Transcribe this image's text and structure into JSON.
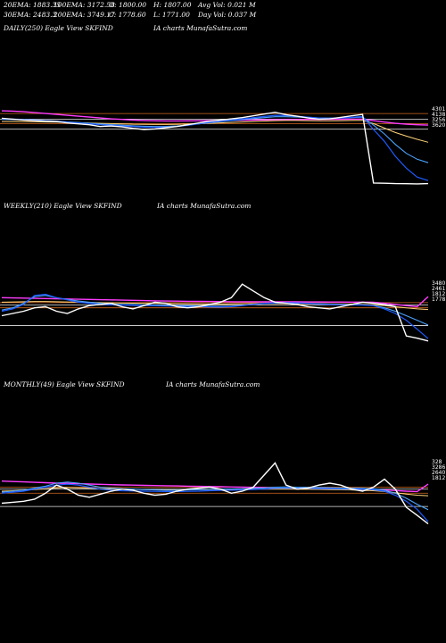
{
  "header": {
    "ema20": "20EMA: 1883.35",
    "ema100": "100EMA: 3172.58",
    "open": "O: 1800.00",
    "high": "H: 1807.00",
    "avgvol": "Avg Vol: 0.021 M",
    "ema30": "30EMA: 2483.3",
    "ema200": "200EMA: 3749.17",
    "close": "C: 1778.60",
    "low": "L: 1771.00",
    "dayvol": "Day Vol: 0.037 M"
  },
  "panels": {
    "daily": {
      "label": "DAILY(250) Eagle   View  SKFIND",
      "watermark": "IA charts MunafaSutra.com"
    },
    "weekly": {
      "label": "WEEKLY(210) Eagle   View  SKFIND",
      "watermark": "IA charts MunafaSutra.com"
    },
    "monthly": {
      "label": "MONTHLY(49) Eagle   View  SKFIND",
      "watermark": "IA charts MunafaSutra.com"
    }
  },
  "colors": {
    "price": "#ffffff",
    "ema20": "#1e5bff",
    "ema30": "#4aa3ff",
    "ema100": "#ffd27a",
    "ema200": "#ff3cff",
    "hline_orange": "#d2691e",
    "hline_white": "#e6e6e6"
  },
  "chart_data": [
    {
      "type": "line",
      "title": "DAILY(250)",
      "price_labels": [
        "4301",
        "4138",
        "3256",
        "3620"
      ],
      "series": [
        {
          "name": "",
          "key": "price",
          "values": [
            3980,
            3950,
            3920,
            3900,
            3880,
            3870,
            3820,
            3790,
            3760,
            3700,
            3720,
            3690,
            3640,
            3600,
            3620,
            3660,
            3700,
            3760,
            3820,
            3880,
            3920,
            3960,
            4000,
            4060,
            4120,
            4180,
            4100,
            4050,
            3990,
            3950,
            3960,
            4010,
            4060,
            4110,
            1800,
            1790,
            1780,
            1775,
            1770,
            1778
          ]
        },
        {
          "name": "",
          "key": "ema20",
          "values": [
            3960,
            3950,
            3940,
            3920,
            3900,
            3880,
            3850,
            3820,
            3790,
            3760,
            3740,
            3720,
            3700,
            3680,
            3670,
            3680,
            3700,
            3740,
            3790,
            3840,
            3880,
            3920,
            3960,
            4000,
            4040,
            4080,
            4070,
            4050,
            4020,
            3990,
            3980,
            3990,
            4010,
            4040,
            3600,
            3200,
            2700,
            2300,
            2000,
            1883
          ]
        },
        {
          "name": "",
          "key": "ema30",
          "values": [
            3940,
            3935,
            3930,
            3915,
            3900,
            3885,
            3860,
            3835,
            3810,
            3785,
            3765,
            3745,
            3725,
            3710,
            3700,
            3705,
            3720,
            3750,
            3790,
            3830,
            3865,
            3900,
            3935,
            3970,
            4000,
            4030,
            4030,
            4020,
            4005,
            3990,
            3985,
            3990,
            4000,
            4020,
            3750,
            3450,
            3100,
            2800,
            2600,
            2483
          ]
        },
        {
          "name": "",
          "key": "ema100",
          "values": [
            3870,
            3870,
            3865,
            3860,
            3855,
            3850,
            3840,
            3830,
            3820,
            3810,
            3800,
            3790,
            3780,
            3775,
            3770,
            3770,
            3775,
            3785,
            3795,
            3810,
            3825,
            3840,
            3855,
            3870,
            3885,
            3900,
            3905,
            3905,
            3900,
            3895,
            3895,
            3900,
            3905,
            3910,
            3800,
            3650,
            3500,
            3380,
            3270,
            3172
          ]
        },
        {
          "name": "",
          "key": "ema200",
          "values": [
            4230,
            4220,
            4200,
            4170,
            4140,
            4110,
            4080,
            4050,
            4020,
            3990,
            3960,
            3940,
            3920,
            3905,
            3895,
            3890,
            3890,
            3892,
            3895,
            3900,
            3905,
            3910,
            3915,
            3920,
            3925,
            3930,
            3935,
            3938,
            3940,
            3942,
            3945,
            3948,
            3950,
            3952,
            3900,
            3850,
            3810,
            3780,
            3760,
            3749
          ]
        }
      ],
      "hlines": [
        4138,
        3950,
        3800,
        3620
      ]
    },
    {
      "type": "line",
      "title": "WEEKLY(210)",
      "price_labels": [
        "3480",
        "2461",
        "1812",
        "1778"
      ],
      "series": [
        {
          "name": "",
          "key": "price",
          "values": [
            2900,
            3000,
            3100,
            3250,
            3300,
            3100,
            3000,
            3200,
            3350,
            3400,
            3450,
            3300,
            3200,
            3350,
            3500,
            3450,
            3300,
            3250,
            3300,
            3400,
            3500,
            3700,
            4300,
            4000,
            3700,
            3500,
            3450,
            3400,
            3300,
            3250,
            3200,
            3300,
            3400,
            3500,
            3450,
            3400,
            3300,
            2000,
            1900,
            1778
          ]
        },
        {
          "name": "",
          "key": "ema20",
          "values": [
            3100,
            3200,
            3400,
            3800,
            3850,
            3700,
            3600,
            3500,
            3450,
            3400,
            3380,
            3370,
            3360,
            3350,
            3340,
            3330,
            3320,
            3310,
            3300,
            3290,
            3280,
            3300,
            3350,
            3400,
            3450,
            3470,
            3480,
            3470,
            3450,
            3420,
            3400,
            3390,
            3380,
            3370,
            3350,
            3200,
            3000,
            2700,
            2300,
            1883
          ]
        },
        {
          "name": "",
          "key": "ema30",
          "values": [
            3150,
            3250,
            3450,
            3750,
            3800,
            3700,
            3620,
            3550,
            3500,
            3450,
            3420,
            3400,
            3390,
            3380,
            3370,
            3360,
            3350,
            3340,
            3330,
            3320,
            3310,
            3320,
            3360,
            3400,
            3440,
            3460,
            3470,
            3465,
            3450,
            3430,
            3410,
            3400,
            3390,
            3380,
            3360,
            3250,
            3100,
            2900,
            2700,
            2483
          ]
        },
        {
          "name": "",
          "key": "ema100",
          "values": [
            3500,
            3510,
            3520,
            3530,
            3530,
            3520,
            3510,
            3500,
            3490,
            3480,
            3470,
            3460,
            3455,
            3450,
            3445,
            3440,
            3435,
            3430,
            3425,
            3420,
            3420,
            3425,
            3430,
            3435,
            3440,
            3440,
            3440,
            3435,
            3430,
            3425,
            3420,
            3415,
            3410,
            3400,
            3390,
            3350,
            3300,
            3250,
            3200,
            3172
          ]
        },
        {
          "name": "",
          "key": "ema200",
          "values": [
            3700,
            3690,
            3680,
            3670,
            3660,
            3650,
            3640,
            3630,
            3620,
            3610,
            3600,
            3590,
            3580,
            3570,
            3560,
            3550,
            3545,
            3540,
            3535,
            3530,
            3525,
            3520,
            3520,
            3520,
            3520,
            3518,
            3516,
            3514,
            3512,
            3510,
            3508,
            3506,
            3504,
            3502,
            3500,
            3450,
            3400,
            3350,
            3300,
            3749
          ]
        }
      ],
      "hlines": [
        3480,
        3380,
        3250,
        2461
      ]
    },
    {
      "type": "line",
      "title": "MONTHLY(49)",
      "price_labels": [
        "328",
        "3286",
        "2640",
        "1812"
      ],
      "series": [
        {
          "name": "",
          "key": "price",
          "values": [
            2800,
            2850,
            2900,
            3000,
            3300,
            3700,
            3500,
            3200,
            3100,
            3250,
            3400,
            3500,
            3450,
            3300,
            3200,
            3250,
            3400,
            3500,
            3550,
            3600,
            3500,
            3300,
            3400,
            3600,
            4200,
            4800,
            3700,
            3500,
            3550,
            3700,
            3800,
            3700,
            3500,
            3400,
            3600,
            4000,
            3500,
            2600,
            2200,
            1778
          ]
        },
        {
          "name": "",
          "key": "ema20",
          "values": [
            3300,
            3350,
            3400,
            3500,
            3600,
            3700,
            3750,
            3700,
            3600,
            3500,
            3450,
            3420,
            3410,
            3400,
            3390,
            3380,
            3380,
            3390,
            3400,
            3420,
            3440,
            3450,
            3460,
            3480,
            3500,
            3550,
            3560,
            3550,
            3540,
            3530,
            3520,
            3510,
            3500,
            3490,
            3470,
            3400,
            3200,
            2900,
            2500,
            1883
          ]
        },
        {
          "name": "",
          "key": "ema30",
          "values": [
            3350,
            3400,
            3450,
            3550,
            3650,
            3800,
            3850,
            3800,
            3700,
            3600,
            3550,
            3520,
            3500,
            3480,
            3460,
            3450,
            3450,
            3460,
            3470,
            3490,
            3500,
            3510,
            3520,
            3540,
            3560,
            3600,
            3610,
            3600,
            3590,
            3580,
            3570,
            3560,
            3550,
            3540,
            3520,
            3450,
            3300,
            3050,
            2750,
            2483
          ]
        },
        {
          "name": "",
          "key": "ema100",
          "values": [
            3400,
            3420,
            3450,
            3480,
            3520,
            3560,
            3580,
            3570,
            3550,
            3530,
            3510,
            3500,
            3490,
            3485,
            3480,
            3475,
            3470,
            3470,
            3470,
            3475,
            3480,
            3485,
            3490,
            3495,
            3500,
            3505,
            3505,
            3500,
            3495,
            3490,
            3480,
            3470,
            3460,
            3440,
            3420,
            3380,
            3320,
            3260,
            3200,
            3172
          ]
        },
        {
          "name": "",
          "key": "ema200",
          "values": [
            3900,
            3880,
            3860,
            3840,
            3820,
            3800,
            3785,
            3770,
            3755,
            3740,
            3725,
            3710,
            3700,
            3690,
            3680,
            3670,
            3660,
            3650,
            3640,
            3630,
            3620,
            3610,
            3600,
            3590,
            3580,
            3570,
            3560,
            3550,
            3540,
            3530,
            3520,
            3510,
            3500,
            3490,
            3480,
            3460,
            3430,
            3400,
            3380,
            3749
          ]
        }
      ],
      "hlines": [
        3600,
        3500,
        3300,
        2640
      ]
    }
  ]
}
